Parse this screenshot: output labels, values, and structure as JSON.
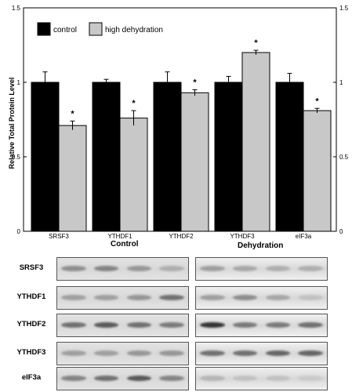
{
  "chart_data": {
    "type": "bar",
    "categories": [
      "SRSF3",
      "YTHDF1",
      "YTHDF2",
      "YTHDF3",
      "eIF3a"
    ],
    "series": [
      {
        "name": "control",
        "values": [
          1.0,
          1.0,
          1.0,
          1.0,
          1.0
        ],
        "errors": [
          0.07,
          0.02,
          0.07,
          0.04,
          0.06
        ],
        "color": "#000000"
      },
      {
        "name": "high dehydration",
        "values": [
          0.71,
          0.76,
          0.93,
          1.2,
          0.81
        ],
        "errors": [
          0.03,
          0.05,
          0.02,
          0.015,
          0.015
        ],
        "color": "#c8c8c8"
      }
    ],
    "significant": [
      "",
      "*",
      "",
      "*",
      "",
      "*",
      "",
      "*",
      "",
      "*"
    ],
    "title": "",
    "xlabel": "",
    "ylabel": "Relative Total Protein Level",
    "ylim": [
      0,
      1.5
    ],
    "yticks": [
      "0",
      "0.5",
      "1",
      "1.5"
    ],
    "legend_placement": "top-left",
    "grid": false
  },
  "groups": {
    "control_label": "Control",
    "dehydration_label": "Dehydration"
  },
  "blots": [
    {
      "label": "SRSF3",
      "control": [
        0.55,
        0.6,
        0.5,
        0.35
      ],
      "dehydration": [
        0.45,
        0.4,
        0.35,
        0.35
      ]
    },
    {
      "label": "YTHDF1",
      "control": [
        0.45,
        0.45,
        0.5,
        0.7
      ],
      "dehydration": [
        0.45,
        0.55,
        0.4,
        0.2
      ]
    },
    {
      "label": "YTHDF2",
      "control": [
        0.7,
        0.8,
        0.7,
        0.65
      ],
      "dehydration": [
        0.95,
        0.65,
        0.65,
        0.7
      ]
    },
    {
      "label": "YTHDF3",
      "control": [
        0.45,
        0.45,
        0.5,
        0.5
      ],
      "dehydration": [
        0.7,
        0.7,
        0.75,
        0.75
      ]
    },
    {
      "label": "eIF3a",
      "control": [
        0.6,
        0.7,
        0.8,
        0.6
      ],
      "dehydration": [
        0.3,
        0.2,
        0.2,
        0.12
      ]
    }
  ]
}
